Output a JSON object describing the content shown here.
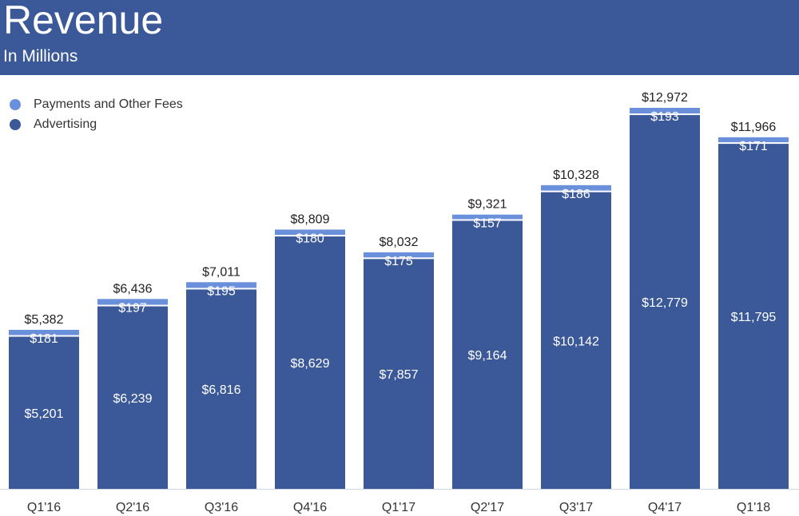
{
  "header": {
    "title": "Revenue",
    "subtitle": "In Millions"
  },
  "colors": {
    "header_bg": "#3b5998",
    "advertising": "#3b5998",
    "payments": "#6a8fdb",
    "total_label": "#222222",
    "segment_label": "#ffffff",
    "axis_label": "#333333"
  },
  "legend": [
    {
      "label": "Payments and Other Fees",
      "color": "#6a8fdb"
    },
    {
      "label": "Advertising",
      "color": "#3b5998"
    }
  ],
  "chart_data": {
    "type": "bar",
    "stacked": true,
    "title": "Revenue",
    "subtitle": "In Millions",
    "categories": [
      "Q1'16",
      "Q2'16",
      "Q3'16",
      "Q4'16",
      "Q1'17",
      "Q2'17",
      "Q3'17",
      "Q4'17",
      "Q1'18"
    ],
    "series": [
      {
        "name": "Advertising",
        "values": [
          5201,
          6239,
          6816,
          8629,
          7857,
          9164,
          10142,
          12779,
          11795
        ],
        "labels": [
          "$5,201",
          "$6,239",
          "$6,816",
          "$8,629",
          "$7,857",
          "$9,164",
          "$10,142",
          "$12,779",
          "$11,795"
        ]
      },
      {
        "name": "Payments and Other Fees",
        "values": [
          181,
          197,
          195,
          180,
          175,
          157,
          186,
          193,
          171
        ],
        "labels": [
          "$181",
          "$197",
          "$195",
          "$180",
          "$175",
          "$157",
          "$186",
          "$193",
          "$171"
        ]
      }
    ],
    "totals": [
      5382,
      6436,
      7011,
      8809,
      8032,
      9321,
      10328,
      12972,
      11966
    ],
    "total_labels": [
      "$5,382",
      "$6,436",
      "$7,011",
      "$8,809",
      "$8,032",
      "$9,321",
      "$10,328",
      "$12,972",
      "$11,966"
    ],
    "ylim": [
      0,
      12972
    ],
    "xlabel": "",
    "ylabel": "",
    "grid": false,
    "legend_position": "top-left"
  }
}
